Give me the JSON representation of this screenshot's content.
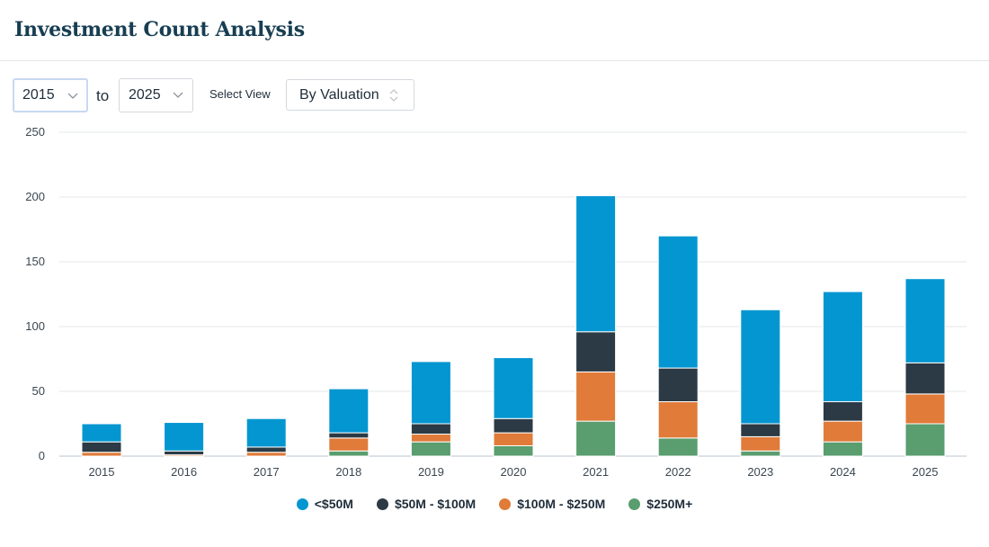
{
  "header": {
    "title": "Investment Count Analysis"
  },
  "controls": {
    "from_year": "2015",
    "to_label": "to",
    "to_year": "2025",
    "view_label": "Select View",
    "view_value": "By Valuation"
  },
  "chart_data": {
    "type": "bar",
    "stacked": true,
    "title": "",
    "xlabel": "",
    "ylabel": "",
    "ylim": [
      0,
      250
    ],
    "yticks": [
      0,
      50,
      100,
      150,
      200,
      250
    ],
    "grid": true,
    "legend_position": "bottom-center",
    "categories": [
      "2015",
      "2016",
      "2017",
      "2018",
      "2019",
      "2020",
      "2021",
      "2022",
      "2023",
      "2024",
      "2025"
    ],
    "series": [
      {
        "name": "$250M+",
        "color": "#5a9d6e",
        "values": [
          0,
          0,
          0,
          4,
          11,
          8,
          27,
          14,
          4,
          11,
          25
        ]
      },
      {
        "name": "$100M - $250M",
        "color": "#e07b39",
        "values": [
          3,
          1,
          3,
          10,
          6,
          10,
          38,
          28,
          11,
          16,
          23
        ]
      },
      {
        "name": "$50M - $100M",
        "color": "#2b3a44",
        "values": [
          8,
          3,
          4,
          4,
          8,
          11,
          31,
          26,
          10,
          15,
          24
        ]
      },
      {
        "name": "<$50M",
        "color": "#0496d1",
        "values": [
          14,
          22,
          22,
          34,
          48,
          47,
          105,
          102,
          88,
          85,
          65
        ]
      }
    ],
    "legend_order": [
      "<$50M",
      "$50M - $100M",
      "$100M - $250M",
      "$250M+"
    ]
  }
}
